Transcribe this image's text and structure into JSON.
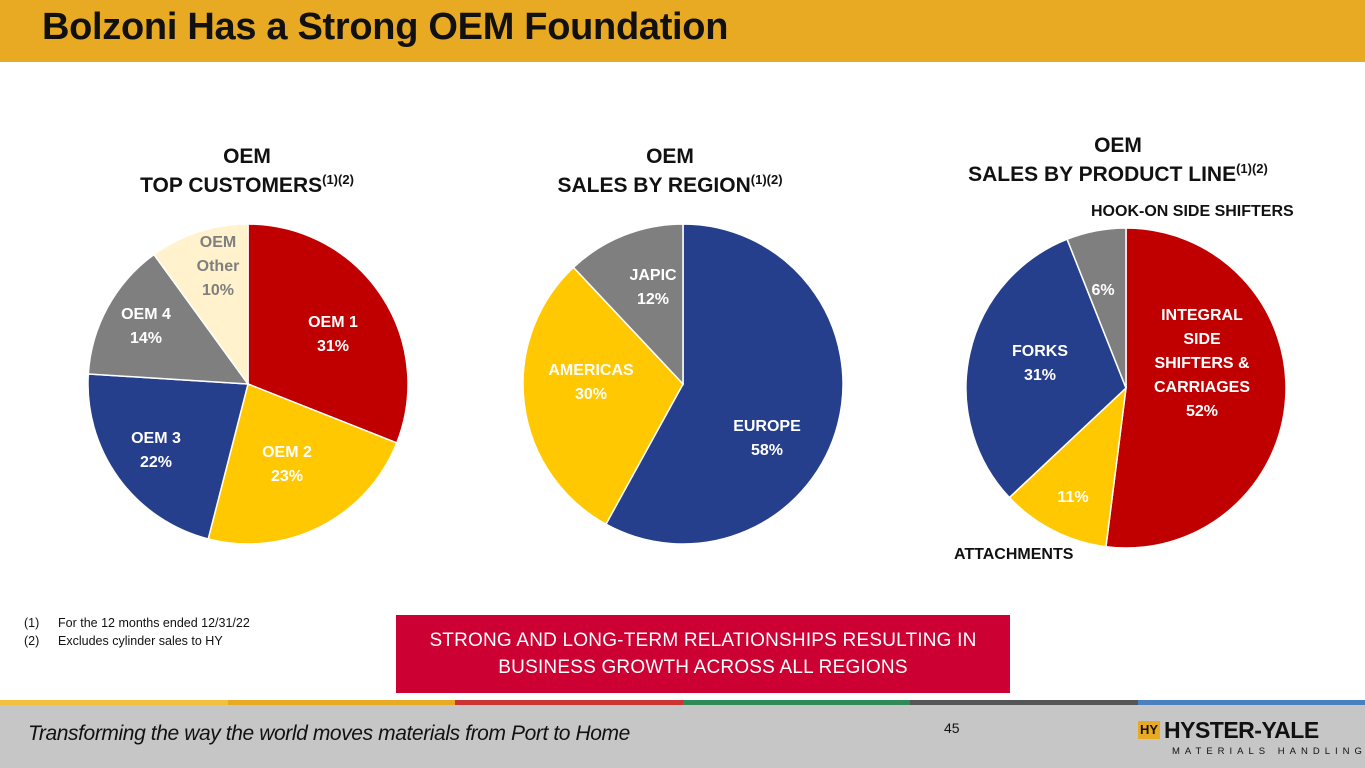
{
  "header": {
    "title": "Bolzoni Has a Strong OEM Foundation"
  },
  "chart_data": [
    {
      "type": "pie",
      "title_line1": "OEM",
      "title_line2": "TOP CUSTOMERS",
      "title_sup": "(1)(2)",
      "slices": [
        {
          "name": "OEM 1",
          "value": 31,
          "label": "31%",
          "color": "#c00000",
          "text_color": "#ffffff"
        },
        {
          "name": "OEM 2",
          "value": 23,
          "label": "23%",
          "color": "#ffc800",
          "text_color": "#ffffff"
        },
        {
          "name": "OEM 3",
          "value": 22,
          "label": "22%",
          "color": "#263f8c",
          "text_color": "#ffffff"
        },
        {
          "name": "OEM 4",
          "value": 14,
          "label": "14%",
          "color": "#7f7f7f",
          "text_color": "#ffffff"
        },
        {
          "name": "OEM Other",
          "value": 10,
          "label": "10%",
          "color": "#fff2cc",
          "text_color": "#7f7f7f"
        }
      ]
    },
    {
      "type": "pie",
      "title_line1": "OEM",
      "title_line2": "SALES BY REGION",
      "title_sup": "(1)(2)",
      "slices": [
        {
          "name": "EUROPE",
          "value": 58,
          "label": "58%",
          "color": "#263f8c",
          "text_color": "#ffffff"
        },
        {
          "name": "AMERICAS",
          "value": 30,
          "label": "30%",
          "color": "#ffc800",
          "text_color": "#ffffff"
        },
        {
          "name": "JAPIC",
          "value": 12,
          "label": "12%",
          "color": "#7f7f7f",
          "text_color": "#ffffff"
        }
      ]
    },
    {
      "type": "pie",
      "title_line1": "OEM",
      "title_line2": "SALES BY PRODUCT LINE",
      "title_sup": "(1)(2)",
      "slices": [
        {
          "name": "INTEGRAL SIDE SHIFTERS & CARRIAGES",
          "value": 52,
          "label": "52%",
          "color": "#c00000",
          "text_color": "#ffffff"
        },
        {
          "name": "ATTACHMENTS",
          "value": 11,
          "label": "11%",
          "color": "#ffc800",
          "text_color": "#ffffff"
        },
        {
          "name": "FORKS",
          "value": 31,
          "label": "31%",
          "color": "#263f8c",
          "text_color": "#ffffff"
        },
        {
          "name": "HOOK-ON SIDE SHIFTERS",
          "value": 6,
          "label": "6%",
          "color": "#7f7f7f",
          "text_color": "#ffffff"
        }
      ]
    }
  ],
  "footnotes": [
    {
      "num": "(1)",
      "text": "For the 12 months ended 12/31/22"
    },
    {
      "num": "(2)",
      "text": "Excludes cylinder sales to HY"
    }
  ],
  "callout": {
    "line1": "STRONG AND LONG-TERM RELATIONSHIPS RESULTING IN",
    "line2": "BUSINESS GROWTH ACROSS ALL REGIONS"
  },
  "footer": {
    "tagline": "Transforming the way the world moves materials from Port to Home",
    "page_number": "45",
    "logo_mark": "HY",
    "logo_name": "HYSTER-YALE",
    "logo_sub": "MATERIALS HANDLING"
  },
  "colors": {
    "header_bar": "#e8a923",
    "callout_bg": "#cc0033",
    "footer_bg": "#c6c6c6",
    "stripe": [
      "#f0c040",
      "#e8a923",
      "#cc3333",
      "#2e8b57",
      "#555555",
      "#4a7fc0"
    ]
  }
}
